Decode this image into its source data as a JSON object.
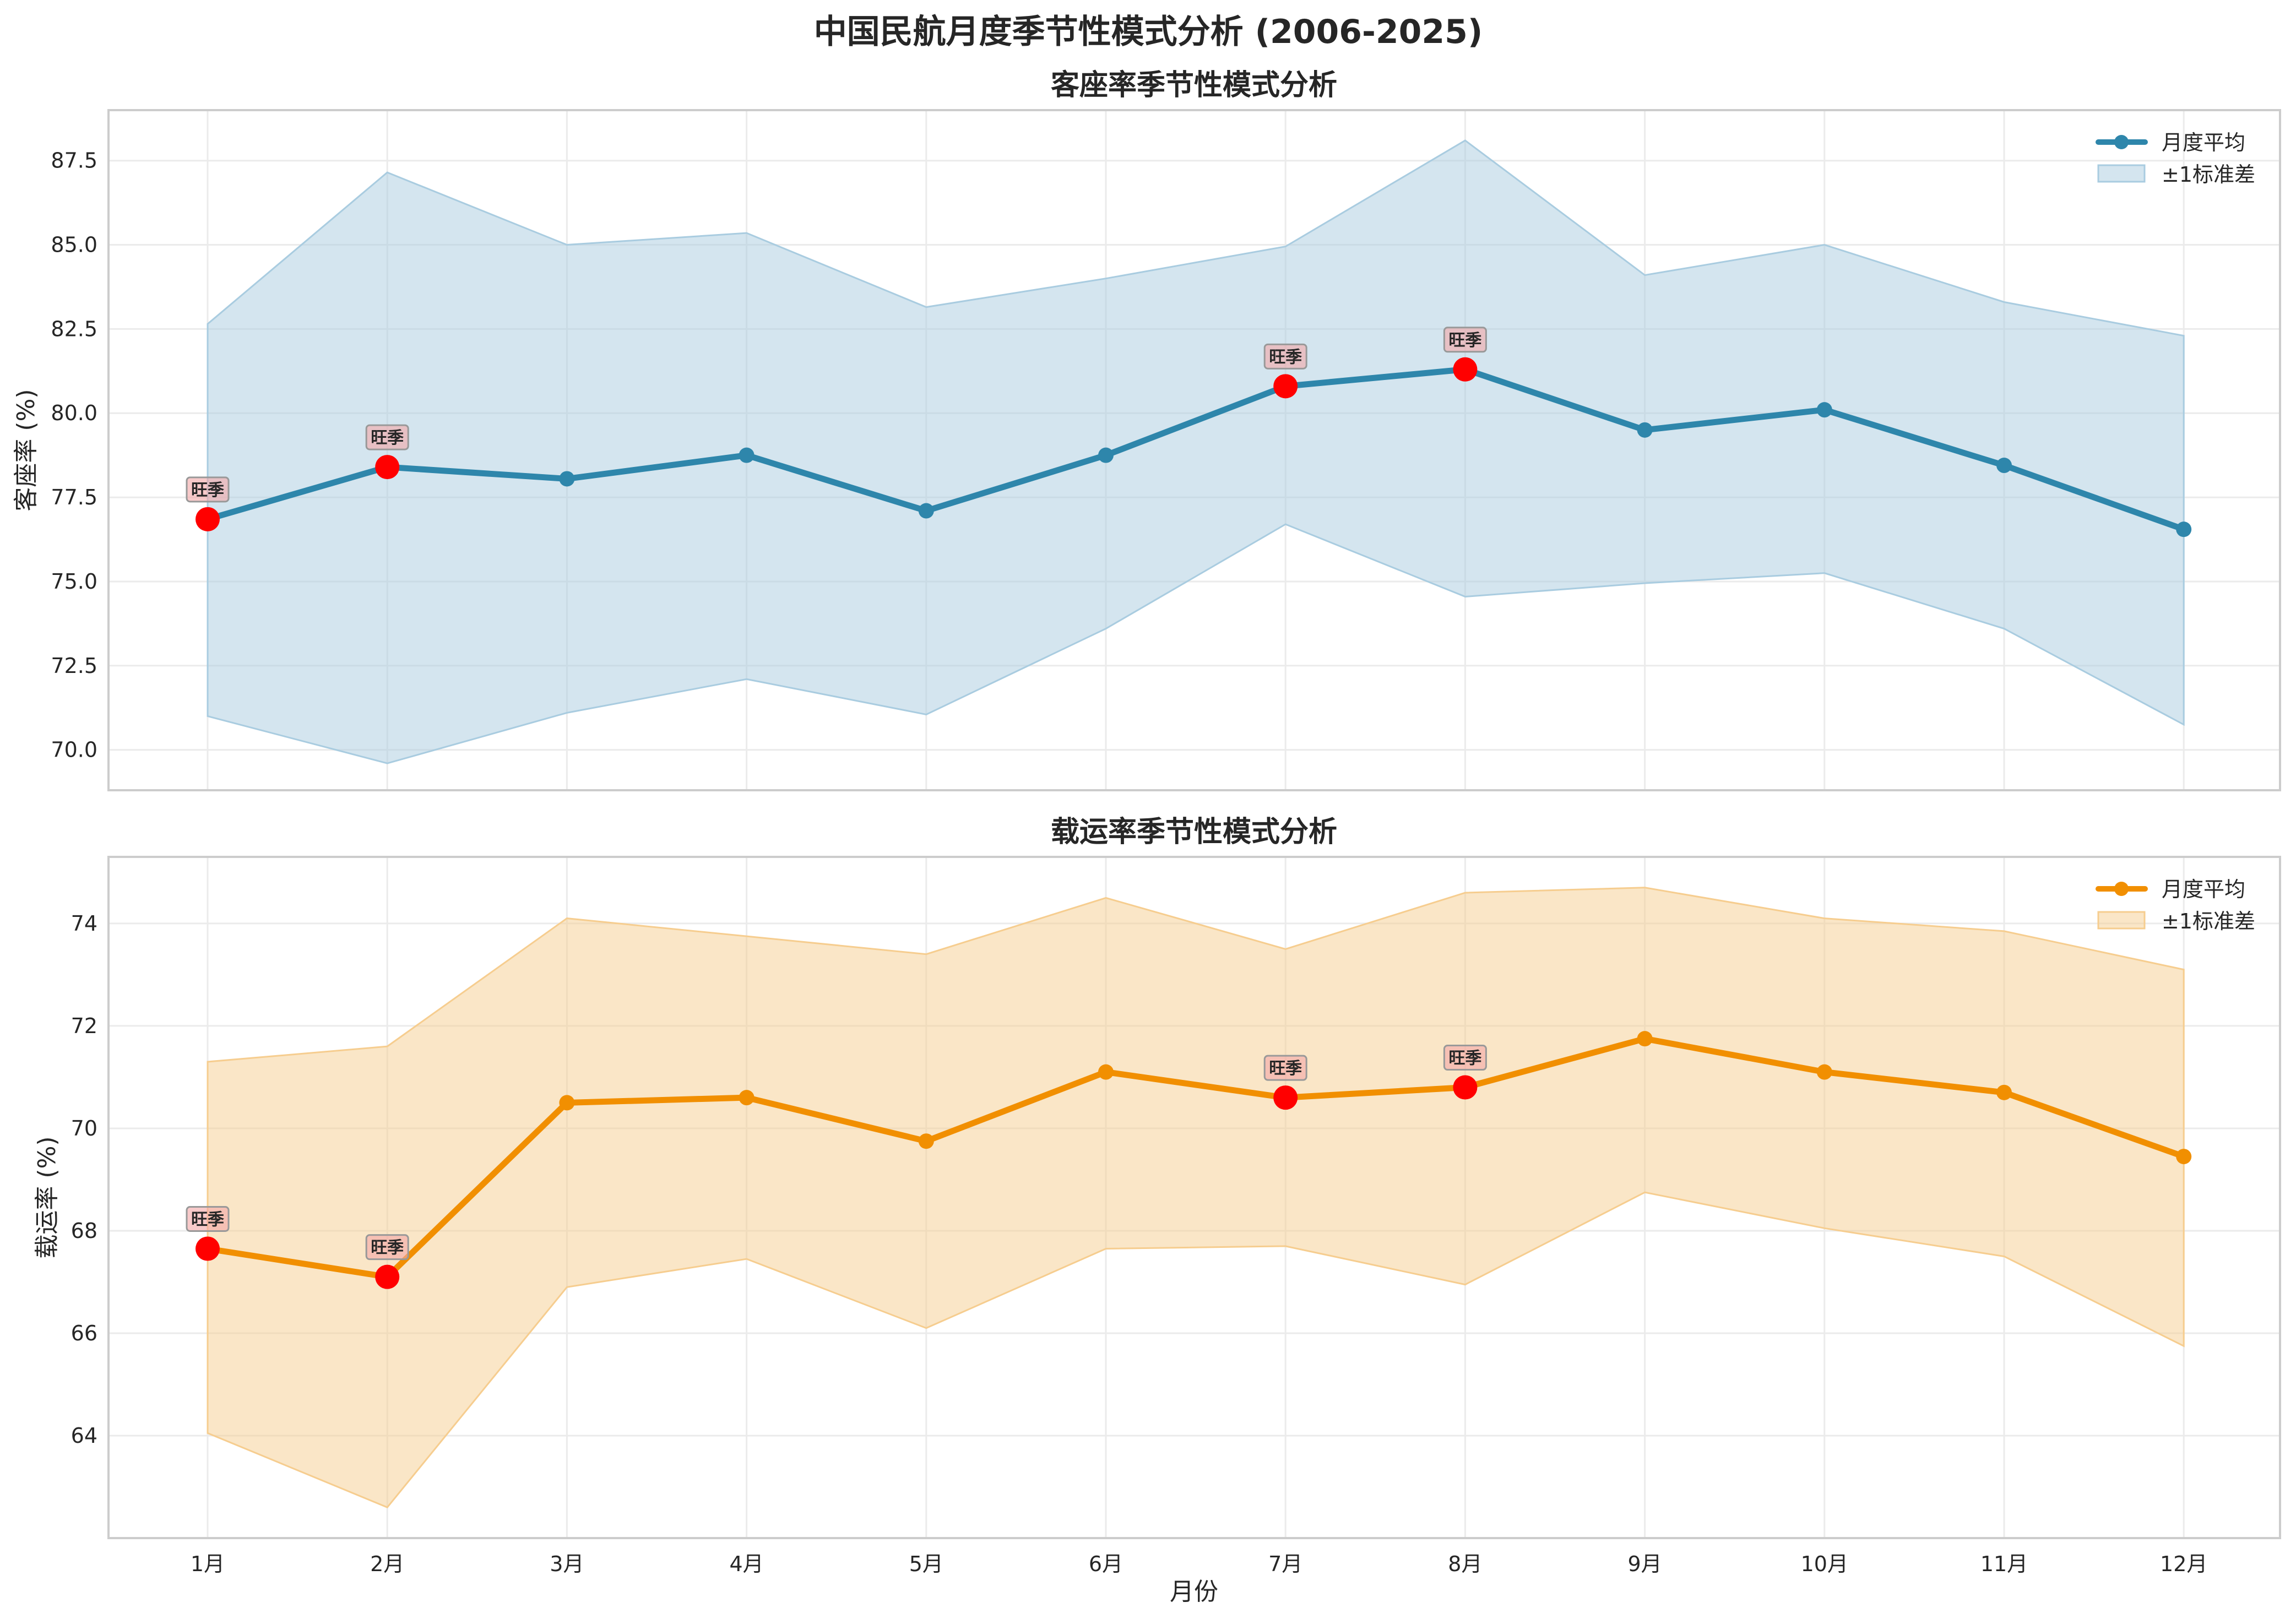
{
  "figure_title": "中国民航月度季节性模式分析 (2006-2025)",
  "chart_data": [
    {
      "type": "line",
      "title": "客座率季节性模式分析",
      "xlabel": "",
      "ylabel": "客座率 (%)",
      "categories": [
        "1月",
        "2月",
        "3月",
        "4月",
        "5月",
        "6月",
        "7月",
        "8月",
        "9月",
        "10月",
        "11月",
        "12月"
      ],
      "ylim": [
        68.8,
        89.0
      ],
      "yticks": [
        "70.0",
        "72.5",
        "75.0",
        "77.5",
        "80.0",
        "82.5",
        "85.0",
        "87.5"
      ],
      "ytick_values": [
        70.0,
        72.5,
        75.0,
        77.5,
        80.0,
        82.5,
        85.0,
        87.5
      ],
      "grid": true,
      "legend_position": "top-right",
      "color": "#2E86AB",
      "band_color": "#A9CCE0",
      "series": [
        {
          "name": "月度平均",
          "values": [
            76.85,
            78.4,
            78.05,
            78.75,
            77.1,
            78.75,
            80.8,
            81.3,
            79.5,
            80.1,
            78.45,
            76.55
          ]
        },
        {
          "name": "±1标准差",
          "upper": [
            82.65,
            87.15,
            85.0,
            85.35,
            83.15,
            84.0,
            84.95,
            88.1,
            84.1,
            85.0,
            83.3,
            82.3
          ],
          "lower": [
            71.0,
            69.6,
            71.1,
            72.1,
            71.05,
            73.6,
            76.7,
            74.55,
            74.95,
            75.25,
            73.6,
            70.75
          ]
        }
      ],
      "peak_label": "旺季",
      "peak_months": [
        0,
        1,
        6,
        7
      ],
      "peak_color": "#FF0000"
    },
    {
      "type": "line",
      "title": "载运率季节性模式分析",
      "xlabel": "月份",
      "ylabel": "载运率 (%)",
      "categories": [
        "1月",
        "2月",
        "3月",
        "4月",
        "5月",
        "6月",
        "7月",
        "8月",
        "9月",
        "10月",
        "11月",
        "12月"
      ],
      "ylim": [
        62.0,
        75.3
      ],
      "yticks": [
        "64",
        "66",
        "68",
        "70",
        "72",
        "74"
      ],
      "ytick_values": [
        64,
        66,
        68,
        70,
        72,
        74
      ],
      "grid": true,
      "legend_position": "top-right",
      "color": "#F18F01",
      "band_color": "#F6CD8F",
      "series": [
        {
          "name": "月度平均",
          "values": [
            67.65,
            67.1,
            70.5,
            70.6,
            69.75,
            71.1,
            70.6,
            70.8,
            71.75,
            71.1,
            70.7,
            69.45
          ]
        },
        {
          "name": "±1标准差",
          "upper": [
            71.3,
            71.6,
            74.1,
            73.75,
            73.4,
            74.5,
            73.5,
            74.6,
            74.7,
            74.1,
            73.85,
            73.1
          ],
          "lower": [
            64.05,
            62.6,
            66.9,
            67.45,
            66.1,
            67.65,
            67.7,
            66.95,
            68.75,
            68.05,
            67.5,
            65.75
          ]
        }
      ],
      "peak_label": "旺季",
      "peak_months": [
        0,
        1,
        6,
        7
      ],
      "peak_color": "#FF0000"
    }
  ]
}
